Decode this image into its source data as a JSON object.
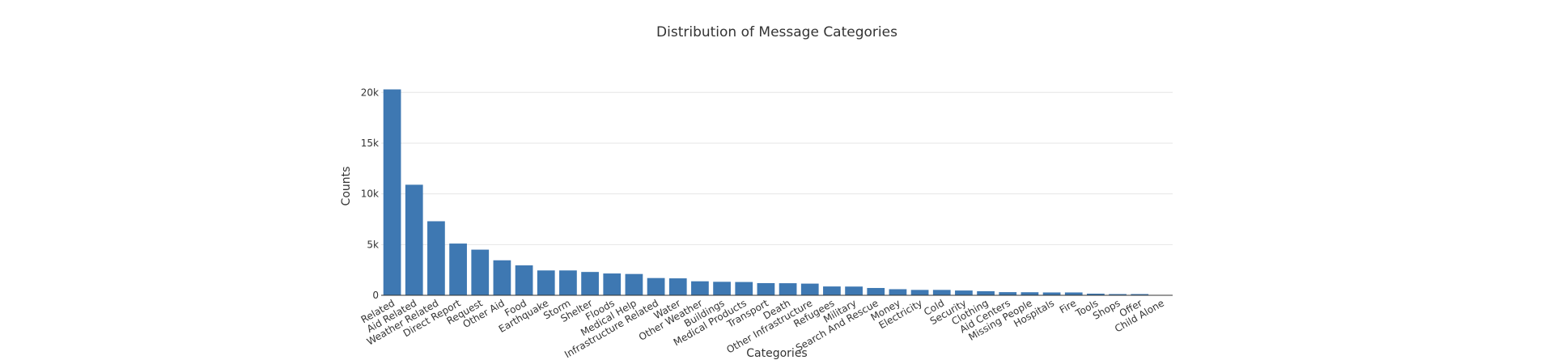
{
  "chart_data": {
    "type": "bar",
    "title": "Distribution of Message Categories",
    "xlabel": "Categories",
    "ylabel": "Counts",
    "ylim": [
      0,
      20500
    ],
    "yticks": [
      0,
      5000,
      10000,
      15000,
      20000
    ],
    "ytick_labels": [
      "0",
      "5k",
      "10k",
      "15k",
      "20k"
    ],
    "grid": true,
    "bar_color": "#3e78b2",
    "categories": [
      "Related",
      "Aid Related",
      "Weather Related",
      "Direct Report",
      "Request",
      "Other Aid",
      "Food",
      "Earthquake",
      "Storm",
      "Shelter",
      "Floods",
      "Medical Help",
      "Infrastructure Related",
      "Water",
      "Other Weather",
      "Buildings",
      "Medical Products",
      "Transport",
      "Death",
      "Other Infrastructure",
      "Refugees",
      "Military",
      "Search And Rescue",
      "Money",
      "Electricity",
      "Cold",
      "Security",
      "Clothing",
      "Aid Centers",
      "Missing People",
      "Hospitals",
      "Fire",
      "Tools",
      "Shops",
      "Offer",
      "Child Alone"
    ],
    "values": [
      20300,
      10900,
      7300,
      5100,
      4500,
      3450,
      2950,
      2450,
      2450,
      2300,
      2150,
      2100,
      1700,
      1670,
      1380,
      1330,
      1310,
      1200,
      1190,
      1150,
      870,
      860,
      720,
      600,
      530,
      530,
      470,
      400,
      310,
      300,
      280,
      280,
      160,
      120,
      120,
      0
    ]
  }
}
